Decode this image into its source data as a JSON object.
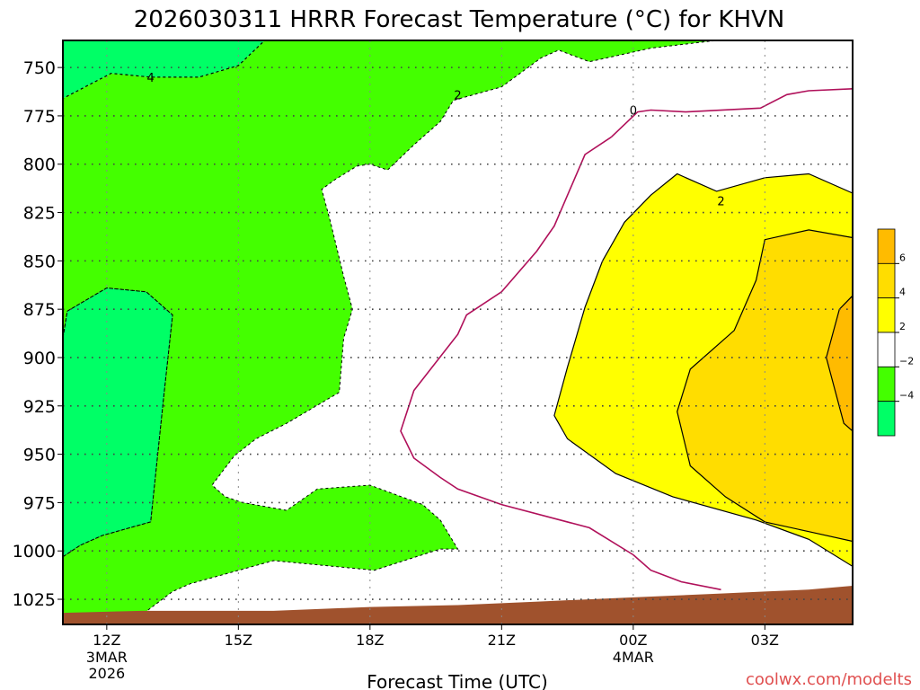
{
  "title": "2026030311 HRRR Forecast Temperature (°C) for KHVN",
  "xlabel": "Forecast Time (UTC)",
  "watermark": "coolwx.com/modelts",
  "colors": {
    "lt_minus4": "#00ff66",
    "m4_m2": "#44ff00",
    "m2_2": "#ffffff",
    "p2_4": "#ffff00",
    "p4_6": "#ffdd00",
    "gt6": "#ffbb00",
    "terrain": "#a0522d",
    "zero_line": "#b0105a",
    "watermark": "#e05050"
  },
  "chart_data": {
    "type": "time-height contour",
    "title": "2026030311 HRRR Forecast Temperature (°C) for KHVN",
    "xlabel": "Forecast Time (UTC)",
    "ylabel": "",
    "x_ticks": [
      {
        "hour": 0,
        "label": "12Z",
        "sub1": "3MAR",
        "sub2": "2026"
      },
      {
        "hour": 3,
        "label": "15Z",
        "sub1": "",
        "sub2": ""
      },
      {
        "hour": 6,
        "label": "18Z",
        "sub1": "",
        "sub2": ""
      },
      {
        "hour": 9,
        "label": "21Z",
        "sub1": "",
        "sub2": ""
      },
      {
        "hour": 12,
        "label": "00Z",
        "sub1": "4MAR",
        "sub2": ""
      },
      {
        "hour": 15,
        "label": "03Z",
        "sub1": "",
        "sub2": ""
      }
    ],
    "x_range_hours": [
      -1,
      17
    ],
    "y_ticks": [
      750,
      775,
      800,
      825,
      850,
      875,
      900,
      925,
      950,
      975,
      1000,
      1025
    ],
    "y_range_hpa": [
      736,
      1038
    ],
    "y_direction": "pressure increasing downward",
    "grid": true,
    "contour_levels": [
      -4,
      -2,
      0,
      2,
      4,
      6
    ],
    "contour_labels": [
      {
        "text": "4",
        "hour": 1.0,
        "hpa": 755
      },
      {
        "text": "2",
        "hour": 8.0,
        "hpa": 764
      },
      {
        "text": "0",
        "hour": 12.0,
        "hpa": 772
      },
      {
        "text": "2",
        "hour": 14.0,
        "hpa": 819
      }
    ],
    "colorbar": {
      "position": "right",
      "bins": [
        {
          "lo": 6,
          "hi": 8,
          "color": "#ffbb00"
        },
        {
          "lo": 4,
          "hi": 6,
          "color": "#ffdd00"
        },
        {
          "lo": 2,
          "hi": 4,
          "color": "#ffff00"
        },
        {
          "lo": -2,
          "hi": 2,
          "color": "#ffffff"
        },
        {
          "lo": -4,
          "hi": -2,
          "color": "#44ff00"
        },
        {
          "lo": -6,
          "hi": -4,
          "color": "#00ff66"
        }
      ],
      "tick_labels": [
        "6",
        "4",
        "2",
        "−2",
        "−4"
      ]
    },
    "regions": [
      {
        "name": "-4 to -2",
        "color": "#44ff00",
        "points": [
          [
            -1,
            736
          ],
          [
            3.6,
            736
          ],
          [
            3.0,
            749
          ],
          [
            2.1,
            755
          ],
          [
            1.0,
            755
          ],
          [
            0.1,
            753
          ],
          [
            -1,
            766
          ],
          [
            -1,
            890
          ],
          [
            -0.9,
            876
          ],
          [
            0,
            864
          ],
          [
            0.9,
            866
          ],
          [
            1.5,
            878
          ],
          [
            1.3,
            920
          ],
          [
            1.0,
            985
          ],
          [
            -0.1,
            992
          ],
          [
            -0.6,
            997
          ],
          [
            -1,
            1003
          ],
          [
            -1,
            1035
          ],
          [
            0.2,
            1033
          ],
          [
            0.8,
            1033
          ],
          [
            1.5,
            1021
          ],
          [
            1.9,
            1017
          ],
          [
            3.8,
            1005
          ],
          [
            6.1,
            1010
          ],
          [
            7.6,
            999
          ],
          [
            8.0,
            999
          ],
          [
            7.6,
            984
          ],
          [
            7.2,
            976
          ],
          [
            6.0,
            966
          ],
          [
            4.8,
            968
          ],
          [
            4.1,
            979
          ],
          [
            3.1,
            975
          ],
          [
            2.7,
            972
          ],
          [
            2.4,
            966
          ],
          [
            2.9,
            951
          ],
          [
            3.4,
            942
          ],
          [
            4.1,
            934
          ],
          [
            5.3,
            918
          ],
          [
            5.4,
            890
          ],
          [
            5.6,
            875
          ],
          [
            5.4,
            858
          ],
          [
            5.1,
            830
          ],
          [
            4.9,
            813
          ],
          [
            5.2,
            808
          ],
          [
            5.7,
            801
          ],
          [
            6.0,
            800
          ],
          [
            6.4,
            803
          ],
          [
            7.0,
            790
          ],
          [
            7.6,
            778
          ],
          [
            7.9,
            767
          ],
          [
            9.0,
            760
          ],
          [
            9.9,
            745
          ],
          [
            10.3,
            741
          ],
          [
            11.0,
            747
          ],
          [
            12.4,
            740
          ],
          [
            13.9,
            736
          ]
        ]
      },
      {
        "name": "below -4 upper",
        "color": "#00ff66",
        "points": [
          [
            -1,
            736
          ],
          [
            3.6,
            736
          ],
          [
            3.0,
            749
          ],
          [
            2.1,
            755
          ],
          [
            1.0,
            755
          ],
          [
            0.1,
            753
          ],
          [
            -1,
            766
          ]
        ]
      },
      {
        "name": "below -4 lower",
        "color": "#00ff66",
        "points": [
          [
            -1,
            890
          ],
          [
            -0.9,
            876
          ],
          [
            0,
            864
          ],
          [
            0.9,
            866
          ],
          [
            1.5,
            878
          ],
          [
            1.3,
            920
          ],
          [
            1.0,
            985
          ],
          [
            -0.1,
            992
          ],
          [
            -0.6,
            997
          ],
          [
            -1,
            1003
          ]
        ]
      },
      {
        "name": "2 to 4",
        "color": "#ffff00",
        "points": [
          [
            17,
            815
          ],
          [
            16,
            805
          ],
          [
            15,
            807
          ],
          [
            13.9,
            814
          ],
          [
            13,
            805
          ],
          [
            12.4,
            816
          ],
          [
            11.8,
            830
          ],
          [
            11.3,
            850
          ],
          [
            10.9,
            874
          ],
          [
            10.5,
            905
          ],
          [
            10.2,
            930
          ],
          [
            10.5,
            942
          ],
          [
            11.6,
            960
          ],
          [
            12.9,
            972
          ],
          [
            14.8,
            984
          ],
          [
            16.0,
            994
          ],
          [
            17,
            1008
          ]
        ]
      },
      {
        "name": "4 to 6",
        "color": "#ffdd00",
        "points": [
          [
            17,
            838
          ],
          [
            16,
            834
          ],
          [
            15,
            839
          ],
          [
            14.8,
            860
          ],
          [
            14.3,
            886
          ],
          [
            13.3,
            906
          ],
          [
            13.0,
            928
          ],
          [
            13.3,
            956
          ],
          [
            14.1,
            972
          ],
          [
            15.0,
            985
          ],
          [
            16.0,
            990
          ],
          [
            17,
            995
          ]
        ]
      },
      {
        "name": "above 6",
        "color": "#ffbb00",
        "points": [
          [
            17,
            868
          ],
          [
            16.7,
            875
          ],
          [
            16.4,
            900
          ],
          [
            16.8,
            934
          ],
          [
            17,
            938
          ]
        ]
      }
    ],
    "zero_line": {
      "points": [
        [
          11.5,
          786
        ],
        [
          12.1,
          773
        ],
        [
          12.4,
          772
        ],
        [
          13.2,
          773
        ],
        [
          14.9,
          771
        ],
        [
          15.5,
          764
        ],
        [
          16.0,
          762
        ],
        [
          17,
          761
        ]
      ]
    },
    "zero_line_lower": {
      "points": [
        [
          12.0,
          1002
        ],
        [
          12.4,
          1010
        ],
        [
          13.1,
          1016
        ],
        [
          14.0,
          1020
        ]
      ]
    },
    "zero_line_mid": {
      "points": [
        [
          11.5,
          786
        ],
        [
          10.9,
          795
        ],
        [
          10.2,
          832
        ],
        [
          9.8,
          845
        ],
        [
          9.0,
          866
        ],
        [
          8.2,
          878
        ],
        [
          8.0,
          888
        ],
        [
          7.0,
          917
        ],
        [
          6.7,
          938
        ],
        [
          7.0,
          952
        ],
        [
          7.6,
          962
        ],
        [
          8.0,
          968
        ],
        [
          9.0,
          976
        ],
        [
          11.0,
          988
        ],
        [
          12.0,
          1002
        ]
      ]
    },
    "terrain": {
      "color": "#a0522d",
      "points": [
        [
          -1,
          1032
        ],
        [
          0.8,
          1031
        ],
        [
          3.8,
          1031
        ],
        [
          6.0,
          1029
        ],
        [
          8.0,
          1028
        ],
        [
          10.0,
          1026
        ],
        [
          12.0,
          1024
        ],
        [
          14.0,
          1022
        ],
        [
          15.0,
          1021
        ],
        [
          16.0,
          1020
        ],
        [
          17,
          1018
        ]
      ]
    }
  }
}
